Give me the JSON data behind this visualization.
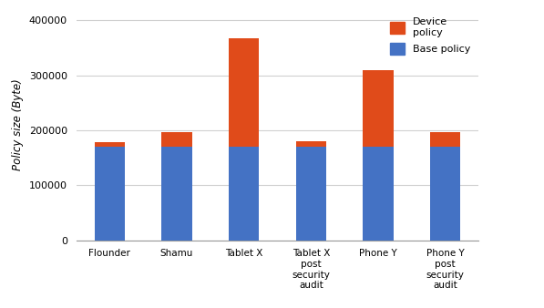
{
  "categories": [
    "Flounder",
    "Shamu",
    "Tablet X",
    "Tablet X\npost\nsecurity\naudit",
    "Phone Y",
    "Phone Y\npost\nsecurity\naudit"
  ],
  "base_policy": [
    170000,
    170000,
    170000,
    170000,
    170000,
    170000
  ],
  "device_policy": [
    8000,
    27000,
    197000,
    10000,
    140000,
    27000
  ],
  "base_color": "#4472c4",
  "device_color": "#e04b1a",
  "ylabel": "Policy size (Byte)",
  "ylim": [
    0,
    420000
  ],
  "yticks": [
    0,
    100000,
    200000,
    300000,
    400000
  ],
  "legend_device": "Device\npolicy",
  "legend_base": "Base policy",
  "background_color": "#ffffff",
  "grid_color": "#d0d0d0",
  "bar_width": 0.45
}
